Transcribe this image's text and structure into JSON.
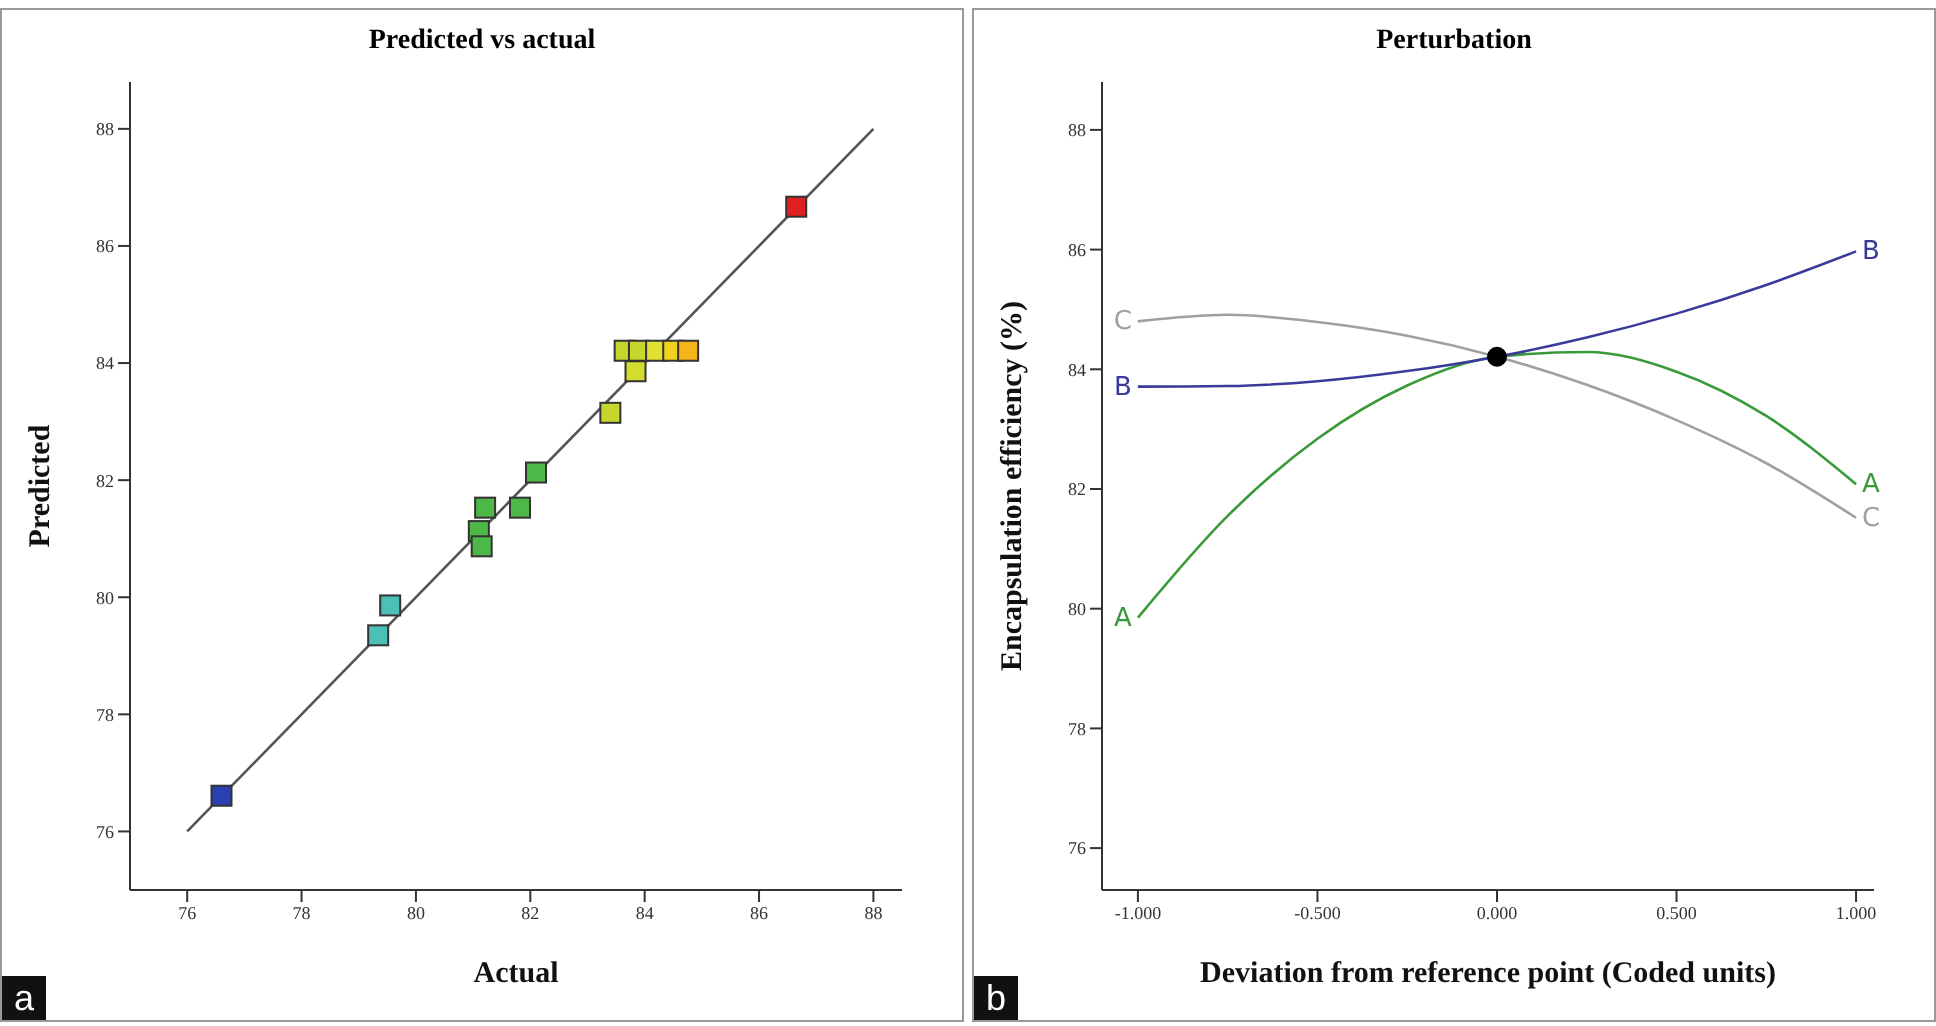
{
  "chart_data": [
    {
      "type": "scatter",
      "title": "Predicted vs actual",
      "xlabel": "Actual",
      "ylabel": "Predicted",
      "annotations": [
        "a"
      ],
      "xlim": [
        75,
        88.5
      ],
      "ylim": [
        75,
        88.8
      ],
      "xticks": [
        76,
        78,
        80,
        82,
        84,
        86,
        88
      ],
      "yticks": [
        76,
        78,
        80,
        82,
        84,
        86,
        88
      ],
      "marker": "square",
      "series": [
        {
          "type": "line",
          "color": "#555555",
          "x": [
            76,
            88
          ],
          "values": [
            76,
            88
          ],
          "marker": "none"
        },
        {
          "x": [
            76.6,
            79.34,
            79.55,
            81.1,
            81.15,
            81.21,
            81.82,
            82.1,
            83.4,
            83.84,
            83.65,
            83.9,
            84.2,
            84.5,
            84.76,
            86.65
          ],
          "values": [
            76.61,
            79.35,
            79.86,
            81.13,
            80.87,
            81.53,
            81.53,
            82.13,
            83.15,
            83.86,
            84.21,
            84.21,
            84.21,
            84.21,
            84.21,
            86.67
          ],
          "colors": [
            "#2a3fb0",
            "#4cc0b5",
            "#4cc0b5",
            "#4db848",
            "#4db848",
            "#4db848",
            "#4db848",
            "#4db848",
            "#c6d62c",
            "#d4dc30",
            "#c6d62c",
            "#c6d62c",
            "#e2e030",
            "#f2d21c",
            "#f4b41a",
            "#e02020"
          ]
        }
      ]
    },
    {
      "type": "line",
      "title": "Perturbation",
      "xlabel": "Deviation from reference point (Coded units)",
      "ylabel": "Encapsulation efficiency (%)",
      "annotations": [
        "b"
      ],
      "xlim": [
        -1.1,
        1.05
      ],
      "ylim": [
        75.3,
        88.8
      ],
      "xticks": [
        {
          "value": -1,
          "label": "-1.000"
        },
        {
          "value": -0.5,
          "label": "-0.500"
        },
        {
          "value": 0,
          "label": "0.000"
        },
        {
          "value": 0.5,
          "label": "0.500"
        },
        {
          "value": 1,
          "label": "1.000"
        }
      ],
      "yticks": [
        76,
        78,
        80,
        82,
        84,
        86,
        88
      ],
      "line_style": "solid",
      "series": [
        {
          "name": "A",
          "color": "#3a9a3a",
          "x": [
            -1,
            -0.75,
            -0.5,
            -0.25,
            0,
            0.25,
            0.5,
            0.75,
            1
          ],
          "values": [
            79.85,
            81.55,
            82.84,
            83.73,
            84.21,
            84.29,
            83.96,
            83.22,
            82.08
          ],
          "marker": "none"
        },
        {
          "name": "B",
          "color": "#3a3a9a",
          "x": [
            -1,
            -0.75,
            -0.5,
            -0.25,
            0,
            0.25,
            0.5,
            0.75,
            1
          ],
          "values": [
            83.71,
            83.72,
            83.8,
            83.97,
            84.21,
            84.53,
            84.93,
            85.41,
            85.97
          ],
          "marker": "none"
        },
        {
          "name": "C",
          "color": "#a0a0a0",
          "x": [
            -1,
            -0.75,
            -0.5,
            -0.25,
            0,
            0.25,
            0.5,
            0.75,
            1
          ],
          "values": [
            84.8,
            84.91,
            84.79,
            84.56,
            84.21,
            83.74,
            83.15,
            82.43,
            81.52
          ],
          "marker": "none"
        },
        {
          "type": "scatter",
          "color": "#000000",
          "x": [
            0
          ],
          "values": [
            84.21
          ],
          "marker": "circle"
        }
      ]
    }
  ]
}
